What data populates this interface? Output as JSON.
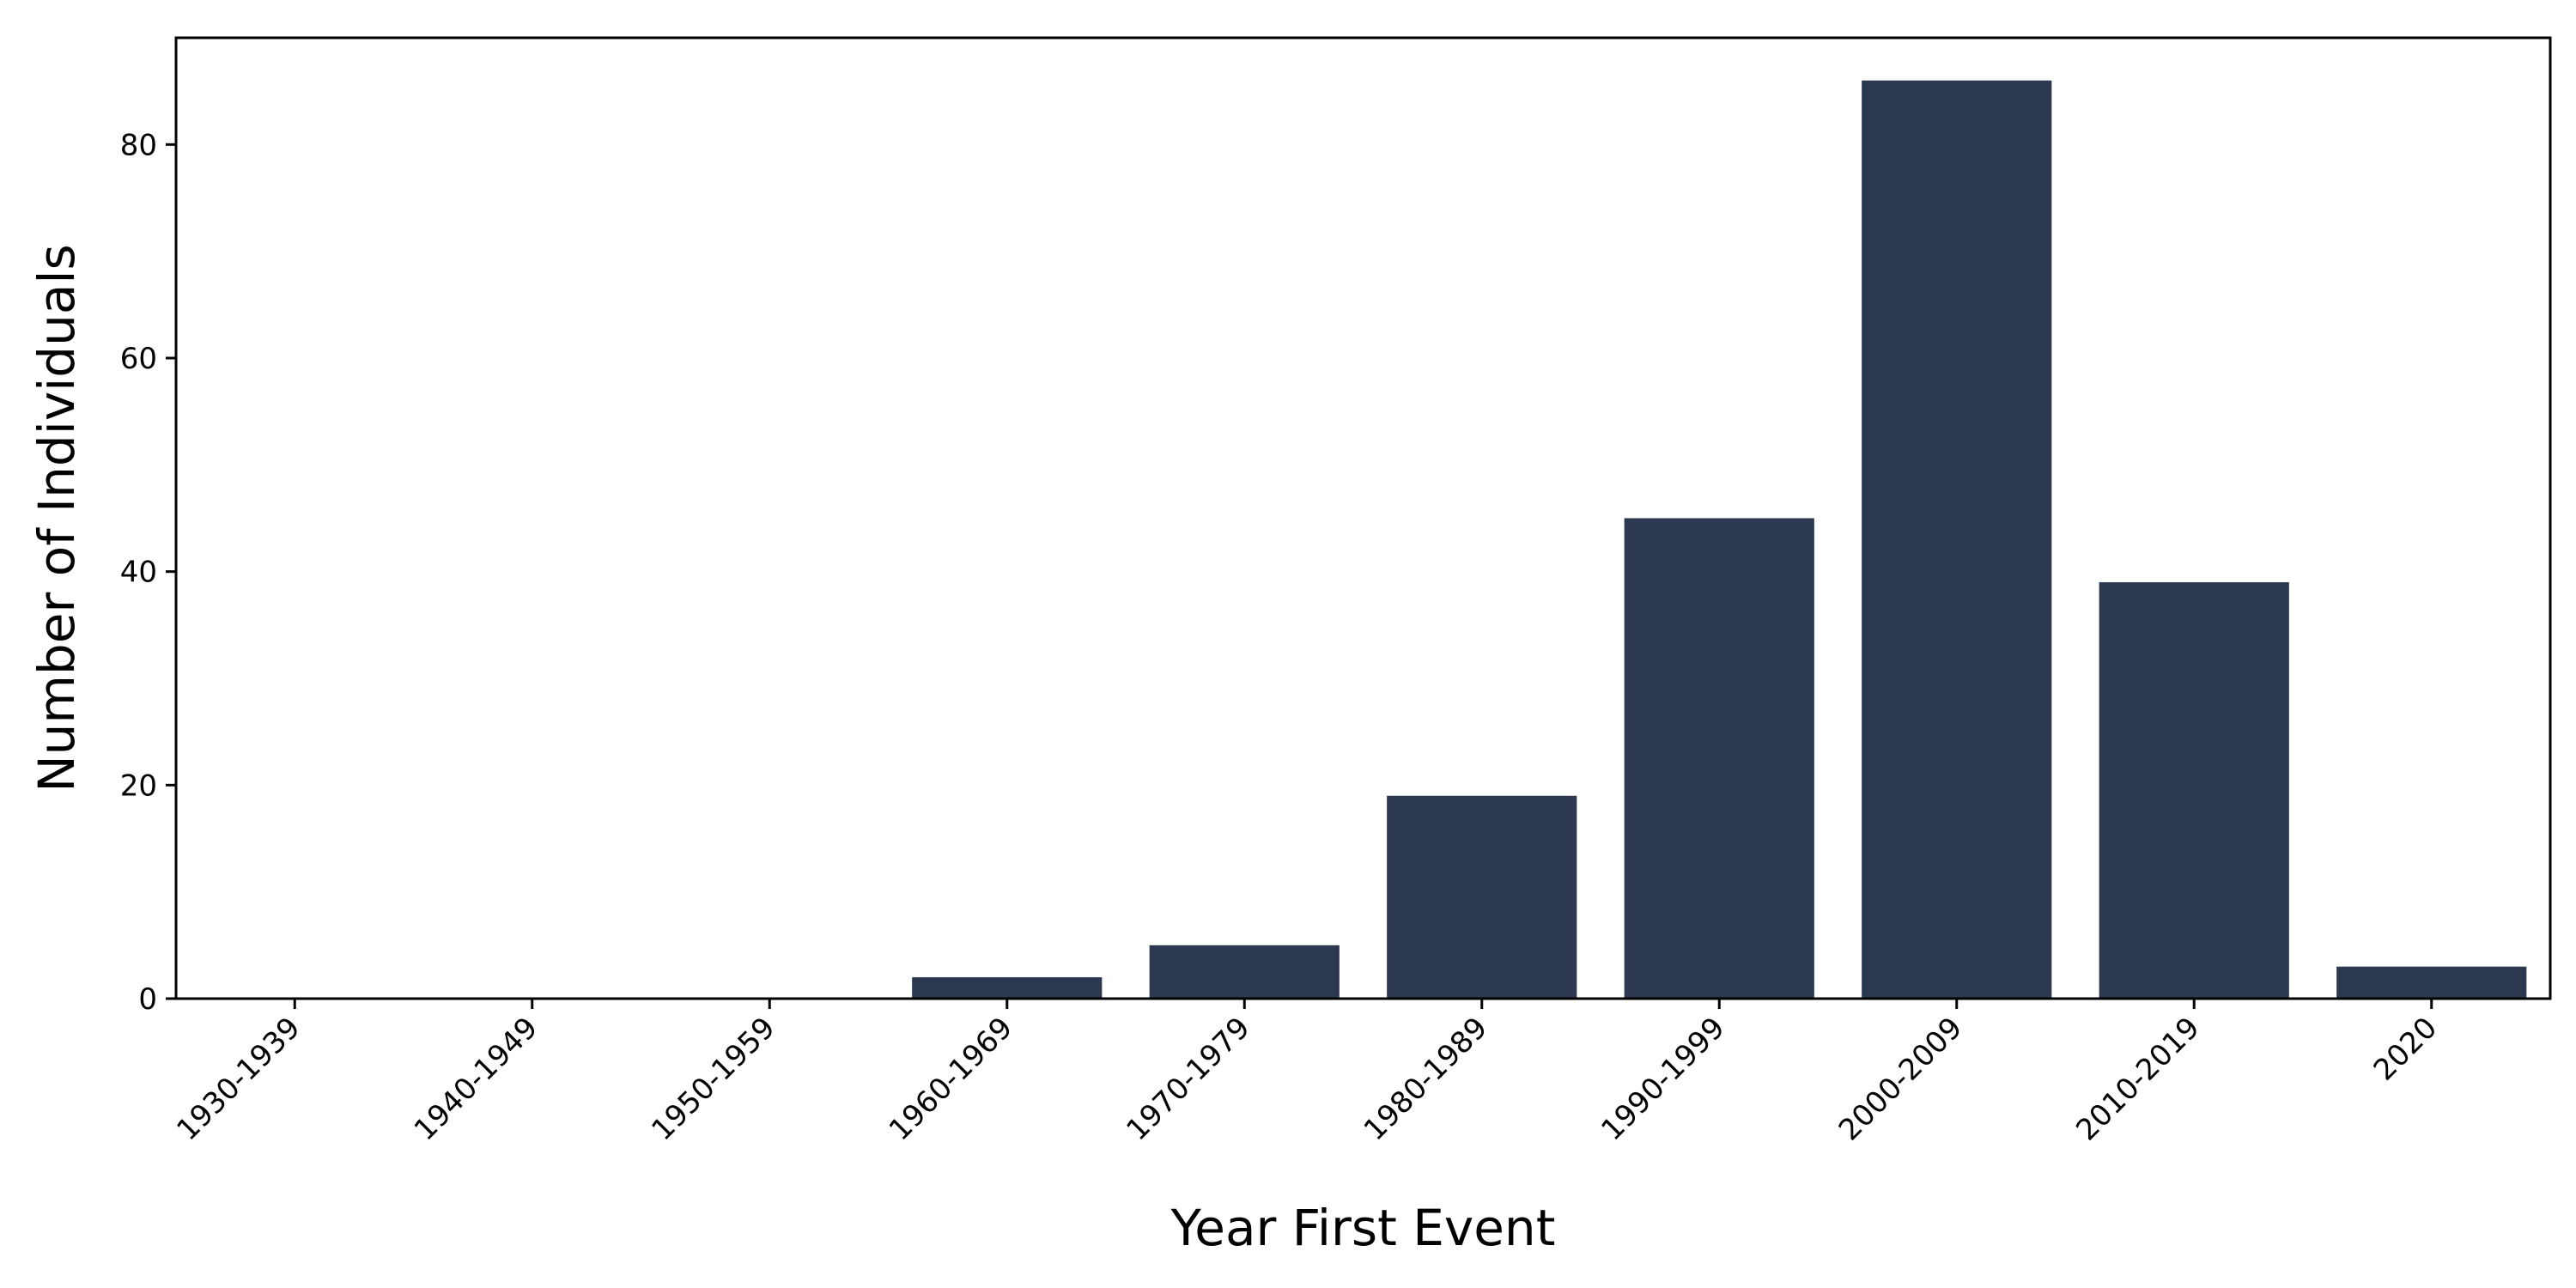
{
  "chart_data": {
    "type": "bar",
    "categories": [
      "1930-1939",
      "1940-1949",
      "1950-1959",
      "1960-1969",
      "1970-1979",
      "1980-1989",
      "1990-1999",
      "2000-2009",
      "2010-2019",
      "2020"
    ],
    "values": [
      0,
      0,
      0,
      2,
      5,
      19,
      45,
      86,
      39,
      3
    ],
    "title": "",
    "xlabel": "Year First Event",
    "ylabel": "Number of Individuals",
    "ylim": [
      0,
      90
    ],
    "yticks": [
      0,
      20,
      40,
      60,
      80
    ],
    "grid": false,
    "legend": "none",
    "bar_color": "#2c3850",
    "axis_color": "#000000"
  }
}
